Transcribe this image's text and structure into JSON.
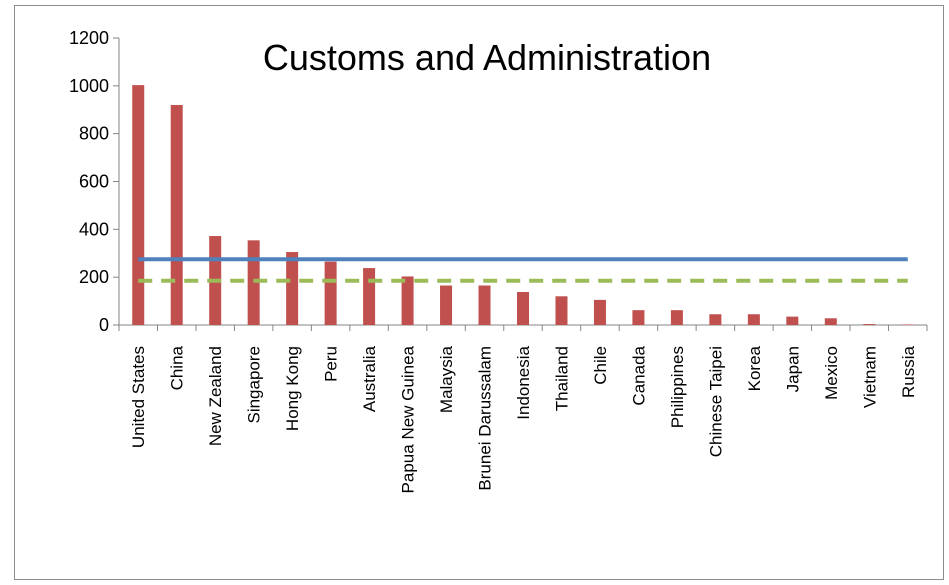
{
  "chart_data": {
    "type": "bar",
    "title": "Customs and Administration",
    "xlabel": "",
    "ylabel": "",
    "ylim": [
      0,
      1200
    ],
    "yticks": [
      0,
      200,
      400,
      600,
      800,
      1000,
      1200
    ],
    "grid": false,
    "categories": [
      "United States",
      "China",
      "New Zealand",
      "Singapore",
      "Hong Kong",
      "Peru",
      "Australia",
      "Papua New Guinea",
      "Malaysia",
      "Brunei Darussalam",
      "Indonesia",
      "Thailand",
      "Chile",
      "Canada",
      "Philippines",
      "Chinese Taipei",
      "Korea",
      "Japan",
      "Mexico",
      "Vietnam",
      "Russia"
    ],
    "series": [
      {
        "type": "bar",
        "color": "#c0504d",
        "values": [
          1003,
          920,
          372,
          354,
          305,
          265,
          238,
          203,
          165,
          165,
          138,
          120,
          105,
          62,
          62,
          45,
          45,
          35,
          28,
          4,
          2
        ]
      },
      {
        "type": "line",
        "style": "solid",
        "color": "#4f81bd",
        "values": [
          275,
          275,
          275,
          275,
          275,
          275,
          275,
          275,
          275,
          275,
          275,
          275,
          275,
          275,
          275,
          275,
          275,
          275,
          275,
          275,
          275
        ]
      },
      {
        "type": "line",
        "style": "dashed",
        "color": "#9bbb59",
        "values": [
          185,
          185,
          185,
          185,
          185,
          185,
          185,
          185,
          185,
          185,
          185,
          185,
          185,
          185,
          185,
          185,
          185,
          185,
          185,
          185,
          185
        ]
      }
    ]
  }
}
